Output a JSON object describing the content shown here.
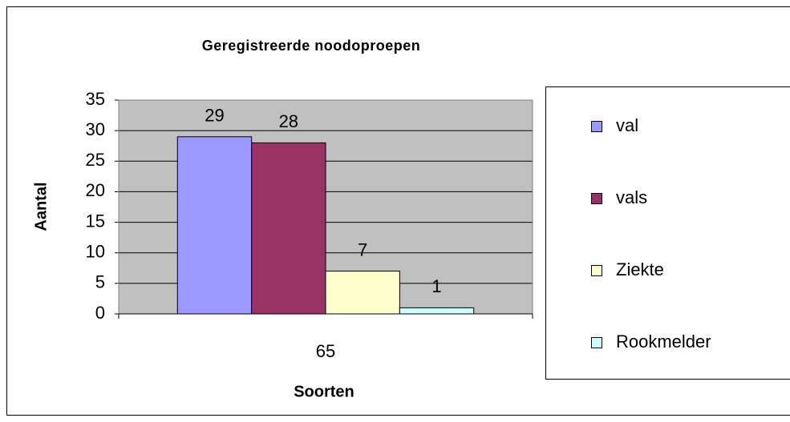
{
  "chart_data": {
    "type": "bar",
    "title": "Geregistreerde noodoproepen",
    "xlabel": "Soorten",
    "ylabel": "Aantal",
    "categories": [
      "65"
    ],
    "series": [
      {
        "name": "val",
        "color": "#9999ff",
        "values": [
          29
        ]
      },
      {
        "name": "vals",
        "color": "#993366",
        "values": [
          28
        ]
      },
      {
        "name": "Ziekte",
        "color": "#ffffcc",
        "values": [
          7
        ]
      },
      {
        "name": "Rookmelder",
        "color": "#ccffff",
        "values": [
          1
        ]
      }
    ],
    "ylim": [
      0,
      35
    ],
    "yticks": [
      0,
      5,
      10,
      15,
      20,
      25,
      30,
      35
    ],
    "grid": true,
    "legend": "right"
  }
}
